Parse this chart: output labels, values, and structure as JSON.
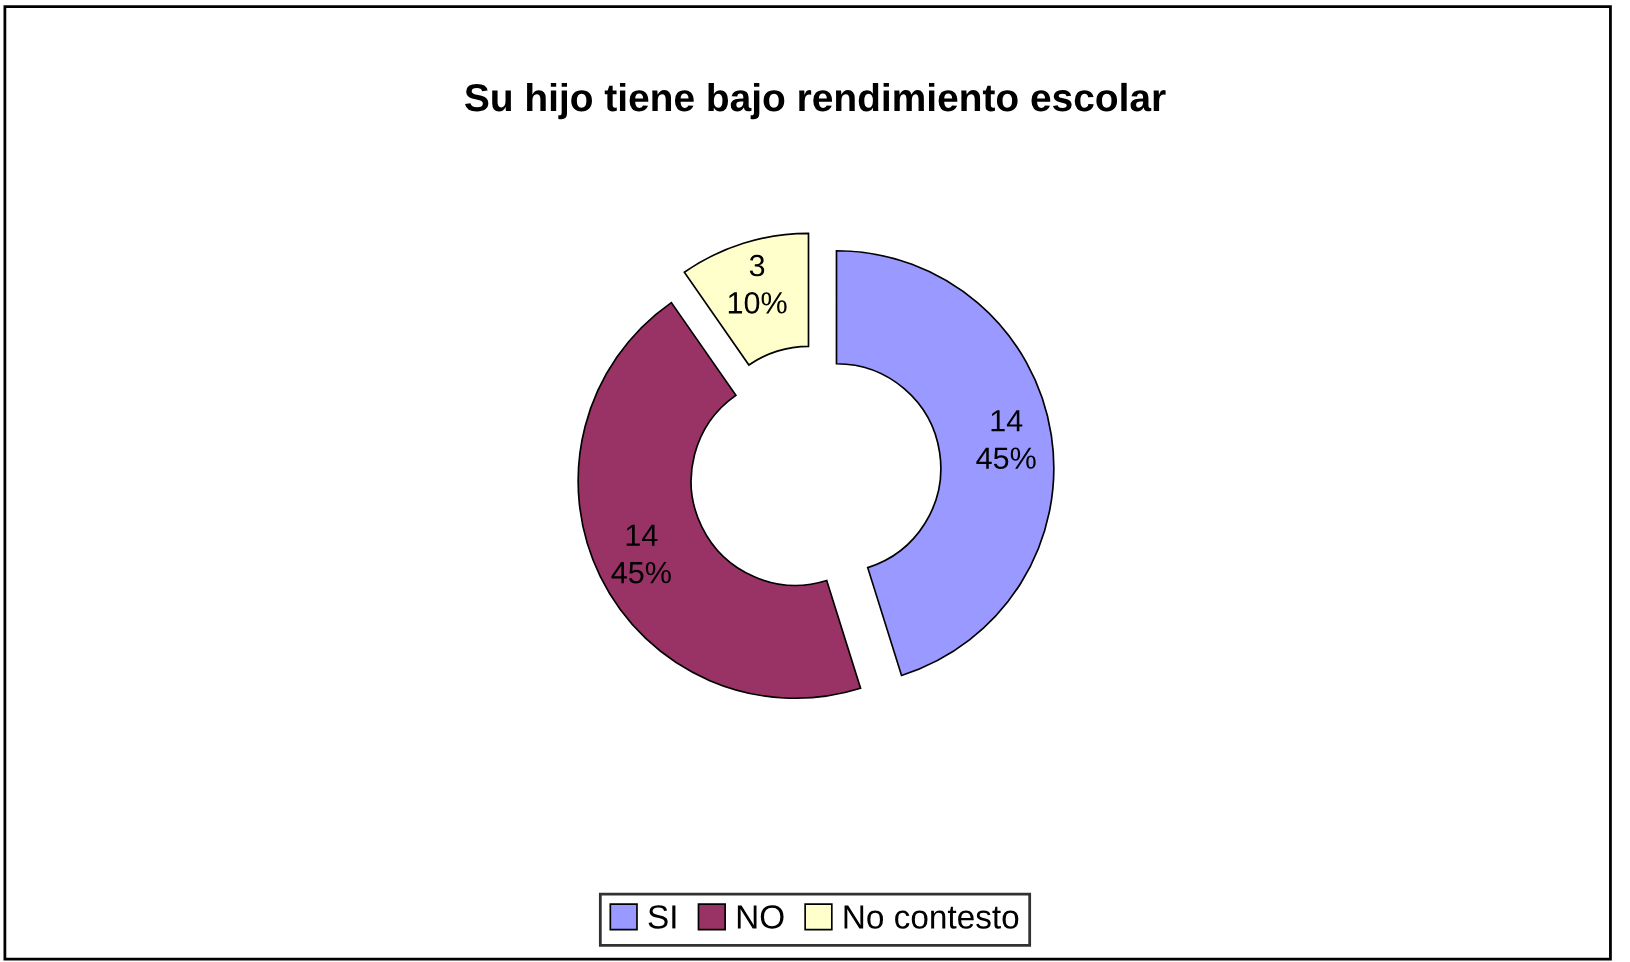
{
  "chart_data": {
    "type": "donut",
    "title": "Su hijo tiene bajo rendimiento escolar",
    "categories": [
      "SI",
      "NO",
      "No contesto"
    ],
    "values": [
      14,
      14,
      3
    ],
    "colors": [
      "#9999ff",
      "#993366",
      "#ffffcc"
    ],
    "value_labels": [
      "14\n45%",
      "14\n45%",
      "3\n10%"
    ],
    "legend": "bottom"
  }
}
